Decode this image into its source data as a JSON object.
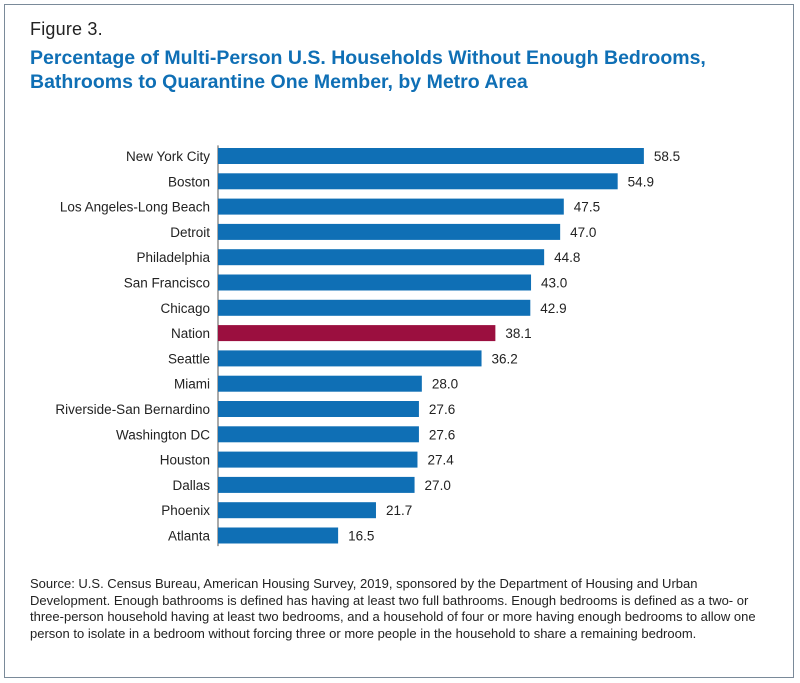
{
  "figure_label": "Figure 3.",
  "title_lines": [
    "Percentage of Multi-Person U.S. Households Without Enough Bedrooms,",
    "Bathrooms to Quarantine One Member, by Metro Area"
  ],
  "colors": {
    "bar": "#0f6fb5",
    "highlight_bar": "#9b0f3f",
    "title": "#0f6fb5",
    "frame": "#7a8a99"
  },
  "chart_data": {
    "type": "bar",
    "orientation": "horizontal",
    "title": "Percentage of Multi-Person U.S. Households Without Enough Bedrooms, Bathrooms to Quarantine One Member, by Metro Area",
    "xlabel": "",
    "ylabel": "",
    "xlim": [
      0,
      60
    ],
    "grid": false,
    "axis_ticks_shown": false,
    "highlight_category": "Nation",
    "categories": [
      "New York City",
      "Boston",
      "Los Angeles-Long Beach",
      "Detroit",
      "Philadelphia",
      "San Francisco",
      "Chicago",
      "Nation",
      "Seattle",
      "Miami",
      "Riverside-San Bernardino",
      "Washington DC",
      "Houston",
      "Dallas",
      "Phoenix",
      "Atlanta"
    ],
    "values": [
      58.5,
      54.9,
      47.5,
      47.0,
      44.8,
      43.0,
      42.9,
      38.1,
      36.2,
      28.0,
      27.6,
      27.6,
      27.4,
      27.0,
      21.7,
      16.5
    ],
    "value_labels": [
      "58.5",
      "54.9",
      "47.5",
      "47.0",
      "44.8",
      "43.0",
      "42.9",
      "38.1",
      "36.2",
      "28.0",
      "27.6",
      "27.6",
      "27.4",
      "27.0",
      "21.7",
      "16.5"
    ]
  },
  "source_text": "Source: U.S. Census Bureau, American Housing Survey, 2019, sponsored by the Department of Housing and Urban Development. Enough bathrooms is defined has having at least two full bathrooms. Enough bedrooms is defined as a two- or three-person household having at least two bedrooms, and a household of four or more having enough bedrooms to allow one person to isolate in a bedroom without forcing three or more people in the household to share a remaining bedroom."
}
